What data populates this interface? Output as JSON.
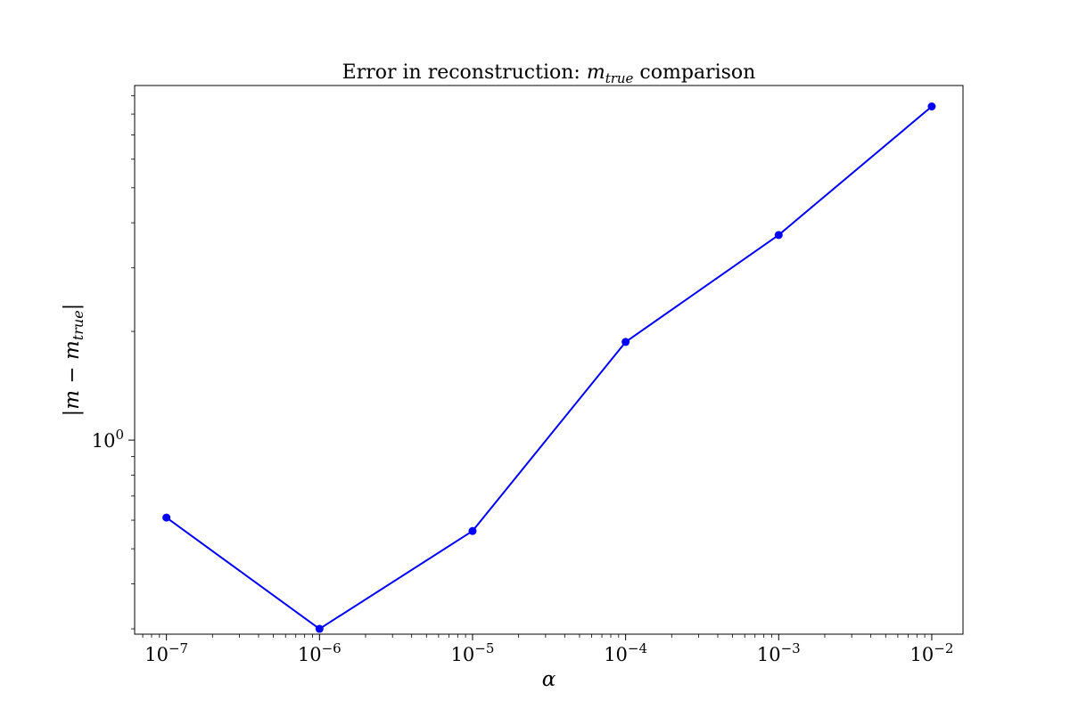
{
  "chart_data": {
    "type": "line",
    "title_prefix": "Error in reconstruction: ",
    "title_var": "m",
    "title_var_sub": "true",
    "title_suffix": " comparison",
    "xlabel": "α",
    "ylabel": "|m − m",
    "ylabel_sub": "true",
    "ylabel_end": "|",
    "x_scale": "log",
    "y_scale": "log",
    "xlim": [
      6.2e-08,
      0.016
    ],
    "ylim": [
      0.29,
      9.6
    ],
    "grid": false,
    "x_ticks": [
      {
        "value": 1e-07,
        "base": "10",
        "exp": "−7"
      },
      {
        "value": 1e-06,
        "base": "10",
        "exp": "−6"
      },
      {
        "value": 1e-05,
        "base": "10",
        "exp": "−5"
      },
      {
        "value": 0.0001,
        "base": "10",
        "exp": "−4"
      },
      {
        "value": 0.001,
        "base": "10",
        "exp": "−3"
      },
      {
        "value": 0.01,
        "base": "10",
        "exp": "−2"
      }
    ],
    "y_ticks": [
      {
        "value": 1,
        "base": "10",
        "exp": "0"
      }
    ],
    "series": [
      {
        "color": "#0000ff",
        "marker": "circle",
        "x": [
          1e-07,
          1e-06,
          1e-05,
          0.0001,
          0.001,
          0.01
        ],
        "y": [
          0.61,
          0.3,
          0.56,
          1.87,
          3.7,
          8.4
        ]
      }
    ]
  }
}
